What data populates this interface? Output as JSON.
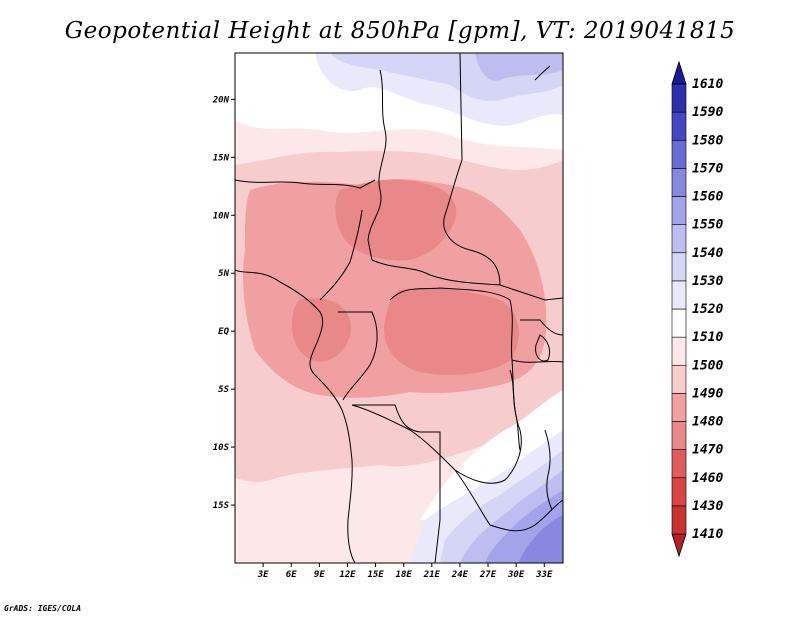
{
  "title": "Geopotential Height at 850hPa [gpm], VT: 2019041815",
  "credit": "GrADS: IGES/COLA",
  "map": {
    "lon_range": [
      0,
      35
    ],
    "lat_range": [
      -20,
      24
    ],
    "lat_ticks": [
      {
        "value": 20,
        "label": "20N"
      },
      {
        "value": 15,
        "label": "15N"
      },
      {
        "value": 10,
        "label": "10N"
      },
      {
        "value": 5,
        "label": "5N"
      },
      {
        "value": 0,
        "label": "EQ"
      },
      {
        "value": -5,
        "label": "5S"
      },
      {
        "value": -10,
        "label": "10S"
      },
      {
        "value": -15,
        "label": "15S"
      }
    ],
    "lon_ticks": [
      {
        "value": 3,
        "label": "3E"
      },
      {
        "value": 6,
        "label": "6E"
      },
      {
        "value": 9,
        "label": "9E"
      },
      {
        "value": 12,
        "label": "12E"
      },
      {
        "value": 15,
        "label": "15E"
      },
      {
        "value": 18,
        "label": "18E"
      },
      {
        "value": 21,
        "label": "21E"
      },
      {
        "value": 24,
        "label": "24E"
      },
      {
        "value": 27,
        "label": "27E"
      },
      {
        "value": 30,
        "label": "30E"
      },
      {
        "value": 33,
        "label": "33E"
      }
    ]
  },
  "colorbar": {
    "levels": [
      "1410",
      "1430",
      "1460",
      "1470",
      "1480",
      "1490",
      "1500",
      "1510",
      "1520",
      "1530",
      "1540",
      "1550",
      "1560",
      "1570",
      "1580",
      "1590",
      "1610"
    ],
    "colors": [
      "#b22222",
      "#c83232",
      "#d84545",
      "#e05d5d",
      "#e98888",
      "#f0a0a0",
      "#f7cccc",
      "#fce8e8",
      "#ffffff",
      "#e9e9fb",
      "#d5d5f5",
      "#bdbdf0",
      "#a3a3ea",
      "#8888e0",
      "#6a6ad5",
      "#4646c2",
      "#2f2fad",
      "#1a1a96"
    ]
  }
}
